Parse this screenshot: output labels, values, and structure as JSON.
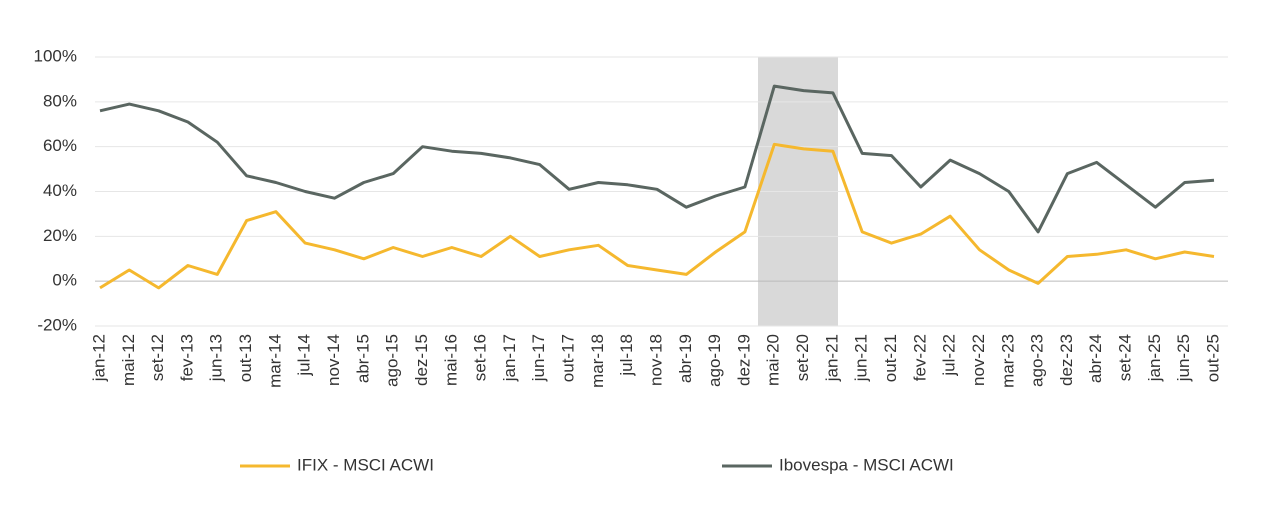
{
  "chart_data": {
    "type": "line",
    "categories": [
      "jan-12",
      "mai-12",
      "set-12",
      "fev-13",
      "jun-13",
      "out-13",
      "mar-14",
      "jul-14",
      "nov-14",
      "abr-15",
      "ago-15",
      "dez-15",
      "mai-16",
      "set-16",
      "jan-17",
      "jun-17",
      "out-17",
      "mar-18",
      "jul-18",
      "nov-18",
      "abr-19",
      "ago-19",
      "dez-19",
      "mai-20",
      "set-20",
      "jan-21",
      "jun-21",
      "out-21",
      "fev-22",
      "jul-22",
      "nov-22",
      "mar-23",
      "ago-23",
      "dez-23",
      "abr-24",
      "set-24",
      "jan-25",
      "jun-25",
      "out-25"
    ],
    "series": [
      {
        "name": "IFIX - MSCI ACWI",
        "color": "#f5b82e",
        "values": [
          -3,
          5,
          -3,
          7,
          3,
          27,
          31,
          17,
          14,
          10,
          15,
          11,
          15,
          11,
          20,
          11,
          14,
          16,
          7,
          5,
          3,
          13,
          22,
          61,
          59,
          58,
          22,
          17,
          21,
          29,
          14,
          5,
          -1,
          11,
          12,
          14,
          10,
          13,
          11
        ]
      },
      {
        "name": "Ibovespa - MSCI ACWI",
        "color": "#5a6661",
        "values": [
          76,
          79,
          76,
          71,
          62,
          47,
          44,
          40,
          37,
          44,
          48,
          60,
          58,
          57,
          55,
          52,
          41,
          44,
          43,
          41,
          33,
          38,
          42,
          87,
          85,
          84,
          57,
          56,
          42,
          54,
          48,
          40,
          22,
          48,
          53,
          43,
          33,
          44,
          45
        ]
      }
    ],
    "ylim": [
      -20,
      100
    ],
    "yticks": [
      {
        "value": -20,
        "label": "-20%"
      },
      {
        "value": 0,
        "label": "0%"
      },
      {
        "value": 20,
        "label": "20%"
      },
      {
        "value": 40,
        "label": "40%"
      },
      {
        "value": 60,
        "label": "60%"
      },
      {
        "value": 80,
        "label": "80%"
      },
      {
        "value": 100,
        "label": "100%"
      }
    ],
    "grid": true
  }
}
